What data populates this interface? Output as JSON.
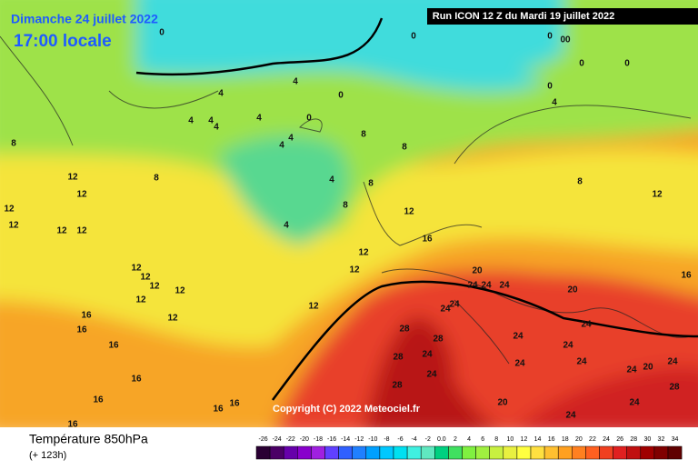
{
  "header": {
    "date": "Dimanche 24 juillet 2022",
    "time": "17:00 locale",
    "run": "Run ICON 12 Z du Mardi 19 juillet 2022"
  },
  "copyright": "Copyright (C) 2022 Meteociel.fr",
  "footer": {
    "title": "Température 850hPa",
    "lead": "(+ 123h)"
  },
  "contour_labels": [
    "0",
    "0",
    "0",
    "00",
    "0",
    "0",
    "0",
    "0",
    "0",
    "4",
    "4",
    "4",
    "4",
    "4",
    "4",
    "4",
    "4",
    "4",
    "4",
    "4",
    "8",
    "8",
    "8",
    "8",
    "8",
    "8",
    "8",
    "12",
    "12",
    "12",
    "12",
    "12",
    "12",
    "12",
    "12",
    "12",
    "12",
    "12",
    "12",
    "12",
    "12",
    "12",
    "12",
    "12",
    "16",
    "16",
    "16",
    "16",
    "16",
    "16",
    "16",
    "16",
    "16",
    "16",
    "20",
    "20",
    "20",
    "20",
    "24",
    "24",
    "24",
    "24",
    "24",
    "24",
    "24",
    "24",
    "24",
    "24",
    "24",
    "24",
    "24",
    "24",
    "24",
    "24",
    "28",
    "28",
    "28",
    "28",
    "28"
  ],
  "colorbar": {
    "labels": [
      "-26",
      "-24",
      "-22",
      "-20",
      "-18",
      "-16",
      "-14",
      "-12",
      "-10",
      "-8",
      "-6",
      "-4",
      "-2",
      "0.0",
      "2",
      "4",
      "6",
      "8",
      "10",
      "12",
      "14",
      "16",
      "18",
      "20",
      "22",
      "24",
      "26",
      "28",
      "30",
      "32",
      "34"
    ],
    "colors": [
      "#2a0033",
      "#4b0066",
      "#6600aa",
      "#8800cc",
      "#a020e0",
      "#6040ff",
      "#3060ff",
      "#2080ff",
      "#00a0ff",
      "#00c8ff",
      "#00e0f0",
      "#40f0e0",
      "#60e8c0",
      "#00d080",
      "#40e060",
      "#80f040",
      "#a0f040",
      "#c8f040",
      "#e8f040",
      "#ffff40",
      "#ffe040",
      "#ffc030",
      "#ffa020",
      "#ff8020",
      "#ff6020",
      "#f04020",
      "#e02020",
      "#c01010",
      "#a00000",
      "#800000",
      "#600000"
    ]
  }
}
